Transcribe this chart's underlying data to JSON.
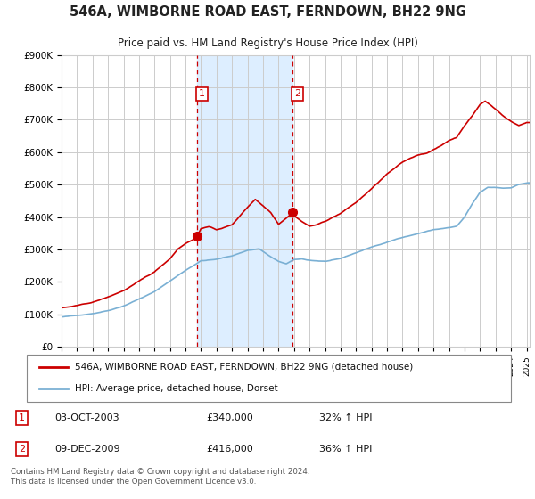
{
  "title": "546A, WIMBORNE ROAD EAST, FERNDOWN, BH22 9NG",
  "subtitle": "Price paid vs. HM Land Registry's House Price Index (HPI)",
  "hpi_label": "HPI: Average price, detached house, Dorset",
  "property_label": "546A, WIMBORNE ROAD EAST, FERNDOWN, BH22 9NG (detached house)",
  "footnote": "Contains HM Land Registry data © Crown copyright and database right 2024.\nThis data is licensed under the Open Government Licence v3.0.",
  "sale1_date": "03-OCT-2003",
  "sale1_price": "£340,000",
  "sale1_hpi": "32% ↑ HPI",
  "sale2_date": "09-DEC-2009",
  "sale2_price": "£416,000",
  "sale2_hpi": "36% ↑ HPI",
  "red_color": "#cc0000",
  "blue_color": "#7ab0d4",
  "vline_color": "#cc0000",
  "background_color": "#ffffff",
  "plot_bg_color": "#ffffff",
  "grid_color": "#cccccc",
  "span_color": "#ddeeff",
  "ylim": [
    0,
    900000
  ],
  "xlim_start": 1995.0,
  "xlim_end": 2025.2,
  "sale1_x": 2003.75,
  "sale1_y": 340000,
  "sale2_x": 2009.92,
  "sale2_y": 416000,
  "ytick_labels": [
    "£0",
    "£100K",
    "£200K",
    "£300K",
    "£400K",
    "£500K",
    "£600K",
    "£700K",
    "£800K",
    "£900K"
  ]
}
